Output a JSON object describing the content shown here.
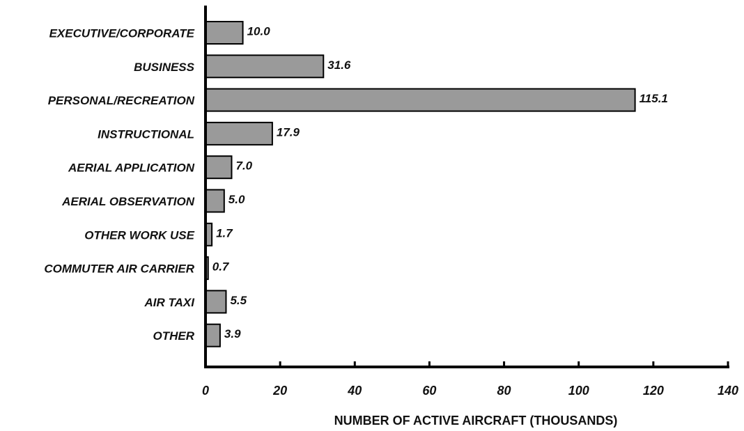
{
  "chart_data": {
    "type": "bar",
    "orientation": "horizontal",
    "x_label": "NUMBER OF ACTIVE AIRCRAFT (THOUSANDS)",
    "categories": [
      "EXECUTIVE/CORPORATE",
      "BUSINESS",
      "PERSONAL/RECREATION",
      "INSTRUCTIONAL",
      "AERIAL APPLICATION",
      "AERIAL OBSERVATION",
      "OTHER WORK USE",
      "COMMUTER AIR CARRIER",
      "AIR TAXI",
      "OTHER"
    ],
    "values": [
      10,
      31.6,
      115.1,
      17.9,
      7,
      5,
      1.7,
      0.7,
      5.5,
      3.9
    ],
    "value_labels": [
      "10.0",
      "31.6",
      "115.1",
      "17.9",
      "7.0",
      "5.0",
      "1.7",
      "0.7",
      "5.5",
      "3.9"
    ],
    "color": "#9a9a9a",
    "xlim": [
      0,
      140
    ],
    "xticks": [
      0,
      20,
      40,
      60,
      80,
      100,
      120,
      140
    ]
  }
}
